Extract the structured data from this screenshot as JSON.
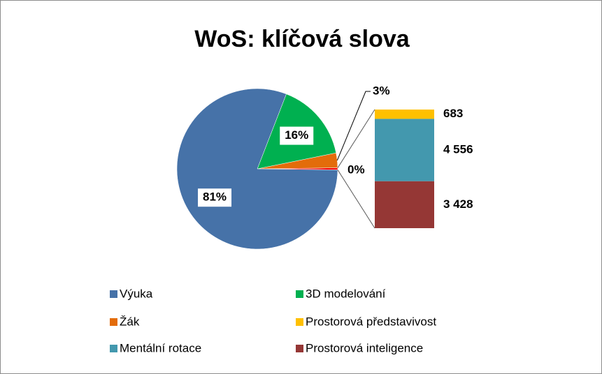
{
  "chart_data": {
    "type": "bar-of-pie",
    "title": "WoS: klíčová slova",
    "pie": {
      "categories": [
        "Výuka",
        "3D modelování",
        "Žák",
        null
      ],
      "values": [
        81,
        16,
        3,
        0.4
      ],
      "value_labels": [
        "81%",
        "16%",
        "3%",
        "0%"
      ],
      "colors": [
        "#4672a8",
        "#00b050",
        "#e36c0a",
        "#ff0000"
      ]
    },
    "bar": {
      "categories": [
        "Prostorová představivost",
        "Mentální rotace",
        "Prostorová inteligence"
      ],
      "values": [
        683,
        4556,
        3428
      ],
      "value_labels": [
        "683",
        "4 556",
        "3 428"
      ],
      "colors": [
        "#ffc000",
        "#4398ae",
        "#953735"
      ]
    },
    "legend": "bottom"
  }
}
